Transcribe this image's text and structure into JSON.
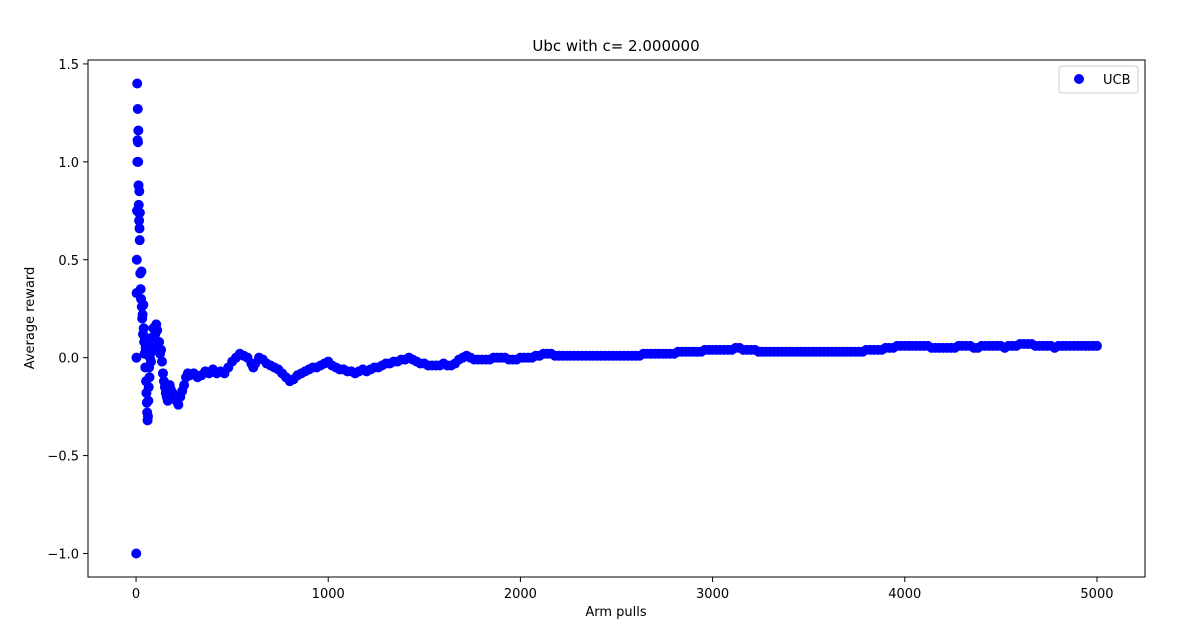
{
  "chart_data": {
    "type": "scatter",
    "title": "Ubc with c= 2.000000",
    "xlabel": "Arm pulls",
    "ylabel": "Average reward",
    "xlim": [
      -250,
      5250
    ],
    "ylim": [
      -1.12,
      1.52
    ],
    "xticks": [
      0,
      1000,
      2000,
      3000,
      4000,
      5000
    ],
    "xtick_labels": [
      "0",
      "1000",
      "2000",
      "3000",
      "4000",
      "5000"
    ],
    "yticks": [
      -1.0,
      -0.5,
      0.0,
      0.5,
      1.0,
      1.5
    ],
    "ytick_labels": [
      "−1.0",
      "−0.5",
      "0.0",
      "0.5",
      "1.0",
      "1.5"
    ],
    "grid": false,
    "legend": {
      "position": "top-right",
      "entries": [
        "UCB"
      ]
    },
    "series": [
      {
        "name": "UCB",
        "color": "#0000ff",
        "marker": "circle",
        "points": [
          [
            1,
            -1.0
          ],
          [
            2,
            0.0
          ],
          [
            3,
            0.33
          ],
          [
            4,
            0.5
          ],
          [
            5,
            0.75
          ],
          [
            6,
            1.4
          ],
          [
            7,
            1.0
          ],
          [
            8,
            1.11
          ],
          [
            9,
            1.27
          ],
          [
            10,
            1.1
          ],
          [
            11,
            1.0
          ],
          [
            12,
            1.16
          ],
          [
            13,
            0.88
          ],
          [
            14,
            0.78
          ],
          [
            15,
            0.74
          ],
          [
            16,
            0.7
          ],
          [
            17,
            0.85
          ],
          [
            18,
            0.66
          ],
          [
            19,
            0.6
          ],
          [
            20,
            0.74
          ],
          [
            22,
            0.43
          ],
          [
            24,
            0.35
          ],
          [
            26,
            0.3
          ],
          [
            28,
            0.44
          ],
          [
            30,
            0.26
          ],
          [
            32,
            0.2
          ],
          [
            34,
            0.22
          ],
          [
            36,
            0.12
          ],
          [
            38,
            0.27
          ],
          [
            40,
            0.15
          ],
          [
            42,
            0.08
          ],
          [
            44,
            0.02
          ],
          [
            46,
            0.1
          ],
          [
            48,
            -0.05
          ],
          [
            50,
            0.05
          ],
          [
            52,
            -0.12
          ],
          [
            54,
            -0.18
          ],
          [
            56,
            -0.23
          ],
          [
            58,
            -0.28
          ],
          [
            60,
            -0.32
          ],
          [
            62,
            -0.3
          ],
          [
            64,
            -0.22
          ],
          [
            66,
            -0.15
          ],
          [
            68,
            -0.05
          ],
          [
            70,
            -0.1
          ],
          [
            72,
            0.0
          ],
          [
            74,
            0.05
          ],
          [
            76,
            0.1
          ],
          [
            78,
            -0.02
          ],
          [
            80,
            0.03
          ],
          [
            85,
            0.1
          ],
          [
            90,
            0.15
          ],
          [
            95,
            0.08
          ],
          [
            100,
            0.12
          ],
          [
            105,
            0.17
          ],
          [
            110,
            0.14
          ],
          [
            115,
            0.06
          ],
          [
            120,
            0.08
          ],
          [
            125,
            0.02
          ],
          [
            130,
            0.04
          ],
          [
            135,
            -0.02
          ],
          [
            140,
            -0.08
          ],
          [
            145,
            -0.12
          ],
          [
            150,
            -0.15
          ],
          [
            155,
            -0.18
          ],
          [
            160,
            -0.2
          ],
          [
            165,
            -0.22
          ],
          [
            170,
            -0.17
          ],
          [
            175,
            -0.14
          ],
          [
            180,
            -0.16
          ],
          [
            190,
            -0.18
          ],
          [
            200,
            -0.2
          ],
          [
            210,
            -0.22
          ],
          [
            220,
            -0.24
          ],
          [
            230,
            -0.2
          ],
          [
            240,
            -0.17
          ],
          [
            250,
            -0.14
          ],
          [
            260,
            -0.1
          ],
          [
            270,
            -0.08
          ],
          [
            280,
            -0.09
          ],
          [
            300,
            -0.08
          ],
          [
            320,
            -0.1
          ],
          [
            340,
            -0.09
          ],
          [
            360,
            -0.07
          ],
          [
            380,
            -0.08
          ],
          [
            400,
            -0.06
          ],
          [
            420,
            -0.08
          ],
          [
            440,
            -0.07
          ],
          [
            460,
            -0.08
          ],
          [
            480,
            -0.05
          ],
          [
            500,
            -0.02
          ],
          [
            520,
            0.0
          ],
          [
            540,
            0.02
          ],
          [
            560,
            0.01
          ],
          [
            580,
            0.0
          ],
          [
            600,
            -0.03
          ],
          [
            610,
            -0.05
          ],
          [
            620,
            -0.03
          ],
          [
            640,
            0.0
          ],
          [
            660,
            -0.01
          ],
          [
            680,
            -0.03
          ],
          [
            700,
            -0.04
          ],
          [
            720,
            -0.05
          ],
          [
            740,
            -0.06
          ],
          [
            760,
            -0.08
          ],
          [
            780,
            -0.1
          ],
          [
            800,
            -0.12
          ],
          [
            820,
            -0.11
          ],
          [
            840,
            -0.09
          ],
          [
            860,
            -0.08
          ],
          [
            880,
            -0.07
          ],
          [
            900,
            -0.06
          ],
          [
            920,
            -0.05
          ],
          [
            940,
            -0.05
          ],
          [
            960,
            -0.04
          ],
          [
            980,
            -0.03
          ],
          [
            1000,
            -0.02
          ],
          [
            1020,
            -0.04
          ],
          [
            1040,
            -0.05
          ],
          [
            1060,
            -0.06
          ],
          [
            1080,
            -0.06
          ],
          [
            1100,
            -0.07
          ],
          [
            1120,
            -0.07
          ],
          [
            1140,
            -0.08
          ],
          [
            1160,
            -0.07
          ],
          [
            1180,
            -0.06
          ],
          [
            1200,
            -0.07
          ],
          [
            1220,
            -0.06
          ],
          [
            1240,
            -0.05
          ],
          [
            1260,
            -0.05
          ],
          [
            1280,
            -0.04
          ],
          [
            1300,
            -0.03
          ],
          [
            1320,
            -0.03
          ],
          [
            1340,
            -0.02
          ],
          [
            1360,
            -0.02
          ],
          [
            1380,
            -0.01
          ],
          [
            1400,
            -0.01
          ],
          [
            1420,
            0.0
          ],
          [
            1440,
            -0.01
          ],
          [
            1460,
            -0.02
          ],
          [
            1480,
            -0.03
          ],
          [
            1500,
            -0.03
          ],
          [
            1520,
            -0.04
          ],
          [
            1540,
            -0.04
          ],
          [
            1560,
            -0.04
          ],
          [
            1580,
            -0.04
          ],
          [
            1600,
            -0.03
          ],
          [
            1620,
            -0.04
          ],
          [
            1640,
            -0.04
          ],
          [
            1660,
            -0.03
          ],
          [
            1680,
            -0.01
          ],
          [
            1700,
            0.0
          ],
          [
            1720,
            0.01
          ],
          [
            1740,
            0.0
          ],
          [
            1760,
            -0.01
          ],
          [
            1780,
            -0.01
          ],
          [
            1800,
            -0.01
          ],
          [
            1820,
            -0.01
          ],
          [
            1840,
            -0.01
          ],
          [
            1860,
            0.0
          ],
          [
            1880,
            0.0
          ],
          [
            1900,
            0.0
          ],
          [
            1920,
            0.0
          ],
          [
            1940,
            -0.01
          ],
          [
            1960,
            -0.01
          ],
          [
            1980,
            -0.01
          ],
          [
            2000,
            0.0
          ],
          [
            2020,
            0.0
          ],
          [
            2040,
            0.0
          ],
          [
            2060,
            0.0
          ],
          [
            2080,
            0.01
          ],
          [
            2100,
            0.01
          ],
          [
            2120,
            0.02
          ],
          [
            2140,
            0.02
          ],
          [
            2160,
            0.02
          ],
          [
            2180,
            0.01
          ],
          [
            2200,
            0.01
          ],
          [
            2220,
            0.01
          ],
          [
            2240,
            0.01
          ],
          [
            2260,
            0.01
          ],
          [
            2280,
            0.01
          ],
          [
            2300,
            0.01
          ],
          [
            2320,
            0.01
          ],
          [
            2340,
            0.01
          ],
          [
            2360,
            0.01
          ],
          [
            2380,
            0.01
          ],
          [
            2400,
            0.01
          ],
          [
            2420,
            0.01
          ],
          [
            2440,
            0.01
          ],
          [
            2460,
            0.01
          ],
          [
            2480,
            0.01
          ],
          [
            2500,
            0.01
          ],
          [
            2520,
            0.01
          ],
          [
            2540,
            0.01
          ],
          [
            2560,
            0.01
          ],
          [
            2580,
            0.01
          ],
          [
            2600,
            0.01
          ],
          [
            2620,
            0.01
          ],
          [
            2640,
            0.02
          ],
          [
            2660,
            0.02
          ],
          [
            2680,
            0.02
          ],
          [
            2700,
            0.02
          ],
          [
            2720,
            0.02
          ],
          [
            2740,
            0.02
          ],
          [
            2760,
            0.02
          ],
          [
            2780,
            0.02
          ],
          [
            2800,
            0.02
          ],
          [
            2820,
            0.03
          ],
          [
            2840,
            0.03
          ],
          [
            2860,
            0.03
          ],
          [
            2880,
            0.03
          ],
          [
            2900,
            0.03
          ],
          [
            2920,
            0.03
          ],
          [
            2940,
            0.03
          ],
          [
            2960,
            0.04
          ],
          [
            2980,
            0.04
          ],
          [
            3000,
            0.04
          ],
          [
            3020,
            0.04
          ],
          [
            3040,
            0.04
          ],
          [
            3060,
            0.04
          ],
          [
            3080,
            0.04
          ],
          [
            3100,
            0.04
          ],
          [
            3120,
            0.05
          ],
          [
            3140,
            0.05
          ],
          [
            3160,
            0.04
          ],
          [
            3180,
            0.04
          ],
          [
            3200,
            0.04
          ],
          [
            3220,
            0.04
          ],
          [
            3240,
            0.03
          ],
          [
            3260,
            0.03
          ],
          [
            3280,
            0.03
          ],
          [
            3300,
            0.03
          ],
          [
            3320,
            0.03
          ],
          [
            3340,
            0.03
          ],
          [
            3360,
            0.03
          ],
          [
            3380,
            0.03
          ],
          [
            3400,
            0.03
          ],
          [
            3420,
            0.03
          ],
          [
            3440,
            0.03
          ],
          [
            3460,
            0.03
          ],
          [
            3480,
            0.03
          ],
          [
            3500,
            0.03
          ],
          [
            3520,
            0.03
          ],
          [
            3540,
            0.03
          ],
          [
            3560,
            0.03
          ],
          [
            3580,
            0.03
          ],
          [
            3600,
            0.03
          ],
          [
            3620,
            0.03
          ],
          [
            3640,
            0.03
          ],
          [
            3660,
            0.03
          ],
          [
            3680,
            0.03
          ],
          [
            3700,
            0.03
          ],
          [
            3720,
            0.03
          ],
          [
            3740,
            0.03
          ],
          [
            3760,
            0.03
          ],
          [
            3780,
            0.03
          ],
          [
            3800,
            0.04
          ],
          [
            3820,
            0.04
          ],
          [
            3840,
            0.04
          ],
          [
            3860,
            0.04
          ],
          [
            3880,
            0.04
          ],
          [
            3900,
            0.05
          ],
          [
            3920,
            0.05
          ],
          [
            3940,
            0.05
          ],
          [
            3960,
            0.06
          ],
          [
            3980,
            0.06
          ],
          [
            4000,
            0.06
          ],
          [
            4020,
            0.06
          ],
          [
            4040,
            0.06
          ],
          [
            4060,
            0.06
          ],
          [
            4080,
            0.06
          ],
          [
            4100,
            0.06
          ],
          [
            4120,
            0.06
          ],
          [
            4140,
            0.05
          ],
          [
            4160,
            0.05
          ],
          [
            4180,
            0.05
          ],
          [
            4200,
            0.05
          ],
          [
            4220,
            0.05
          ],
          [
            4240,
            0.05
          ],
          [
            4260,
            0.05
          ],
          [
            4280,
            0.06
          ],
          [
            4300,
            0.06
          ],
          [
            4320,
            0.06
          ],
          [
            4340,
            0.06
          ],
          [
            4360,
            0.05
          ],
          [
            4380,
            0.05
          ],
          [
            4400,
            0.06
          ],
          [
            4420,
            0.06
          ],
          [
            4440,
            0.06
          ],
          [
            4460,
            0.06
          ],
          [
            4480,
            0.06
          ],
          [
            4500,
            0.06
          ],
          [
            4520,
            0.05
          ],
          [
            4540,
            0.06
          ],
          [
            4560,
            0.06
          ],
          [
            4580,
            0.06
          ],
          [
            4600,
            0.07
          ],
          [
            4620,
            0.07
          ],
          [
            4640,
            0.07
          ],
          [
            4660,
            0.07
          ],
          [
            4680,
            0.06
          ],
          [
            4700,
            0.06
          ],
          [
            4720,
            0.06
          ],
          [
            4740,
            0.06
          ],
          [
            4760,
            0.06
          ],
          [
            4780,
            0.05
          ],
          [
            4800,
            0.06
          ],
          [
            4820,
            0.06
          ],
          [
            4840,
            0.06
          ],
          [
            4860,
            0.06
          ],
          [
            4880,
            0.06
          ],
          [
            4900,
            0.06
          ],
          [
            4920,
            0.06
          ],
          [
            4940,
            0.06
          ],
          [
            4960,
            0.06
          ],
          [
            4980,
            0.06
          ],
          [
            5000,
            0.06
          ]
        ]
      }
    ]
  }
}
